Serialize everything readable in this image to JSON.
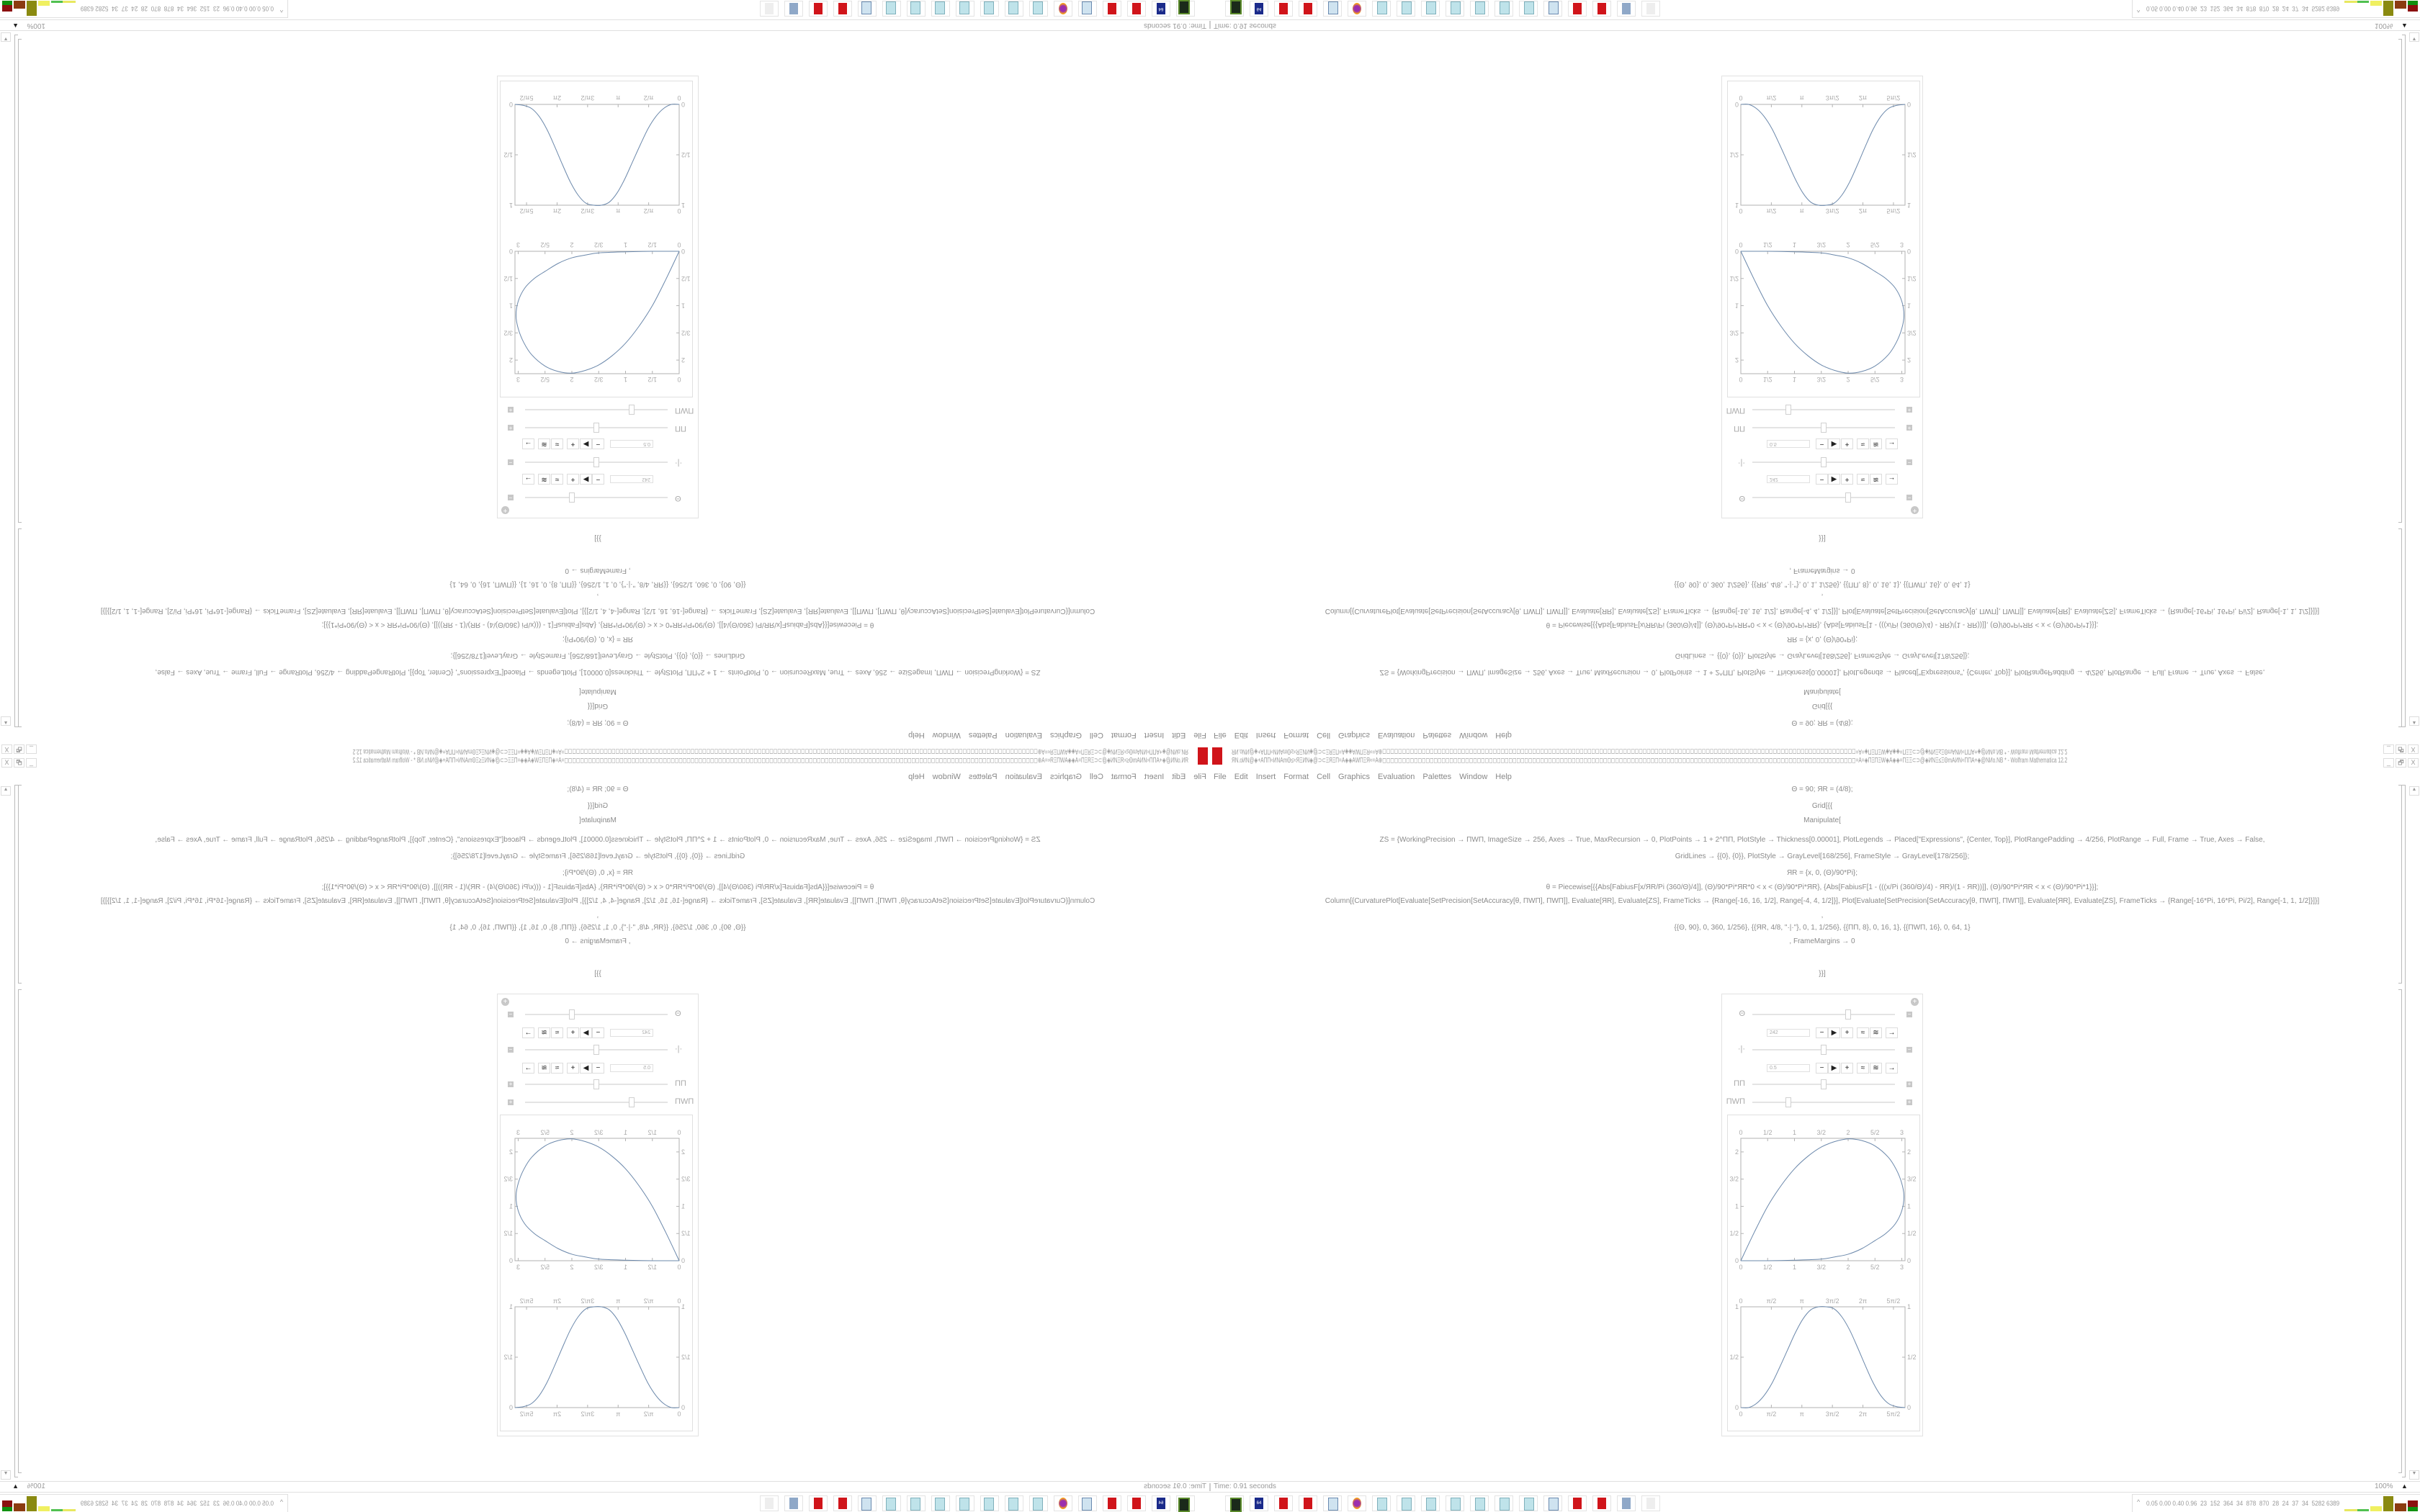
{
  "window": {
    "title": "ЯN.oИN@◈+ΑΠΠ≈ИNAmΘ≤≈ЯΞИN◈@⊃⊂ΞЯΞΠ=Α◈◈ΑWΠΞЯ≈=Α⊕◻◻◻◻◻◻◻◻◻◻◻◻◻◻◻◻◻◻◻◻◻◻◻◻◻◻◻◻◻◻◻◻◻◻◻◻◻◻◻◻◻◻◻◻◻◻◻◻◻◻◻◻◻◻◻◻◻◻◻◻◻◻◻◻◻◻◻◻◻◻◻◻◻◻◻◻◻◻◻◻◻◻◻◻◻◻◻◻◻◻◻◻◻◻◻◻◻◻◻◻◻◻◻◻◻◻◻◻◻◻◻◻◻◻◻◻◻◻◻◻=Α=◈ΠΞΠΞW◈Α◈◈=ΠΞΞ⊂⊃@◈ИNΞ≤ΞΘmΑИN≈ΠΠΑ+◈@NИo.NB * - Wolfram Mathematica 12.2",
    "buttons": {
      "minimize": "_",
      "restore": "🗗",
      "close": "X"
    }
  },
  "menu": [
    "File",
    "Edit",
    "Insert",
    "Format",
    "Cell",
    "Graphics",
    "Evaluation",
    "Palettes",
    "Window",
    "Help"
  ],
  "code": {
    "lines": [
      "Θ = 90; ЯR = (4/8);",
      "Grid[{{",
      "Manipulate[",
      "ZS = {WorkingPrecision → ΠWΠ, ImageSize → 256, Axes → True, MaxRecursion → 0, PlotPoints → 1 + 2^ΠΠ, PlotStyle → Thickness[0.00001], PlotLegends → Placed[\"Expressions\", {Center, Top}], PlotRangePadding → 4/256, PlotRange → Full, Frame → True, Axes → False,",
      "GridLines → {{0}, {0}}, PlotStyle → GrayLevel[168/256], FrameStyle → GrayLevel[178/256]};",
      "ЯR = {x, 0, (Θ)/90*Pi};",
      "θ = Piecewise[{{Abs[FabiusF[x/ЯR/Pi (360/Θ)/4]], (Θ)/90*Pi*ЯR*0 < x < (Θ)/90*Pi*ЯR}, {Abs[FabiusF[1 - (((x/Pi (360/Θ)/4) - ЯR)/(1 - ЯR))]], (Θ)/90*Pi*ЯR < x < (Θ)/90*Pi*1}}];",
      "Column[{CurvaturePlot[Evaluate[SetPrecision[SetAccuracy[θ, ΠWΠ], ΠWΠ]], Evaluate[ЯR], Evaluate[ZS], FrameTicks → {Range[-16, 16, 1/2], Range[-4, 4, 1/2]}], Plot[Evaluate[SetPrecision[SetAccuracy[θ, ΠWΠ], ΠWΠ]], Evaluate[ЯR], Evaluate[ZS], FrameTicks → {Range[-16*Pi, 16*Pi, Pi/2], Range[-1, 1, 1/2]}]}]",
      ",",
      "{{Θ, 90}, 0, 360, 1/256}, {{ЯR, 4/8, \"·|·\"}, 0, 1, 1/256}, {{ΠΠ, 8}, 0, 16, 1}, {{ΠWΠ, 16}, 0, 64, 1}",
      ", FrameMargins → 0",
      "}}]"
    ]
  },
  "manipulate": {
    "controls": [
      {
        "label": "Θ",
        "value": 242,
        "field": "242",
        "min": 0,
        "max": 360,
        "expanded": true
      },
      {
        "label": "·|·",
        "value": 0.5,
        "field": "0.5",
        "min": 0,
        "max": 1,
        "expanded": true
      },
      {
        "label": "ΠΠ",
        "value": 8,
        "min": 0,
        "max": 16,
        "expanded": false
      },
      {
        "label": "ΠWΠ",
        "value": 16,
        "min": 0,
        "max": 64,
        "expanded": false
      }
    ],
    "anim_buttons": [
      "−",
      "▶",
      "+",
      "≈",
      "≋",
      "→"
    ],
    "toggle_minus": "−",
    "toggle_plus": "+"
  },
  "chart_data": [
    {
      "type": "line",
      "title": "",
      "xlim": [
        0,
        3.06
      ],
      "ylim": [
        0,
        2.25
      ],
      "xticks": [
        0,
        0.5,
        1,
        1.5,
        2,
        2.5,
        3
      ],
      "xtick_labels": [
        "0",
        "1/2",
        "1",
        "3/2",
        "2",
        "5/2",
        "3"
      ],
      "yticks": [
        0,
        0.5,
        1,
        1.5,
        2
      ],
      "ytick_labels": [
        "0",
        "1/2",
        "1",
        "3/2",
        "2"
      ],
      "x": [
        0,
        0.25,
        0.5,
        0.75,
        1,
        1.25,
        1.5,
        1.75,
        2,
        2.25,
        2.5,
        2.75,
        2.9,
        3.0,
        3.04,
        3.0,
        2.88,
        2.7,
        2.5,
        2.25,
        2,
        1.75,
        1.5,
        1,
        0.5,
        0
      ],
      "y": [
        0,
        0.52,
        1.0,
        1.38,
        1.69,
        1.92,
        2.09,
        2.19,
        2.24,
        2.21,
        2.11,
        1.9,
        1.67,
        1.42,
        1.18,
        0.92,
        0.68,
        0.5,
        0.37,
        0.22,
        0.12,
        0.07,
        0.03,
        0.01,
        0,
        0
      ],
      "grid": false
    },
    {
      "type": "line",
      "title": "",
      "xlim": [
        0,
        8.45
      ],
      "ylim": [
        0,
        1
      ],
      "xticks": [
        0,
        1.5708,
        3.1416,
        4.7124,
        6.2832,
        7.854
      ],
      "xtick_labels": [
        "0",
        "π/2",
        "π",
        "3π/2",
        "2π",
        "5π/2"
      ],
      "yticks": [
        0,
        0.5,
        1
      ],
      "ytick_labels": [
        "0",
        "1/2",
        "1"
      ],
      "x": [
        0,
        0.4,
        0.8,
        1.2,
        1.6,
        2.0,
        2.4,
        2.8,
        3.2,
        3.6,
        4.0,
        4.4,
        4.8,
        5.2,
        5.6,
        6.0,
        6.4,
        6.8,
        7.2,
        7.6,
        8.0,
        8.45
      ],
      "y": [
        0,
        0,
        0.04,
        0.12,
        0.24,
        0.4,
        0.57,
        0.74,
        0.88,
        0.97,
        1,
        1,
        0.98,
        0.9,
        0.77,
        0.6,
        0.42,
        0.25,
        0.12,
        0.04,
        0.01,
        0
      ],
      "grid": false
    }
  ],
  "status": {
    "time": "Time: 0.91 seconds",
    "zoom": "100%"
  },
  "taskbar": {
    "icons": [
      "terminal-icon",
      "floppy-icon",
      "mathematica-icon",
      "mathematica-icon",
      "calculator-icon",
      "firefox-icon",
      "notepad-icon",
      "notepad-icon",
      "notepad-icon",
      "notepad-icon",
      "notepad-icon",
      "notepad-icon",
      "notepad-icon",
      "calculator-icon",
      "mathematica-icon",
      "mathematica-icon",
      "file-stack-icon",
      "flag-icon"
    ],
    "floppy_label": "64"
  },
  "tray": {
    "chevron": "^",
    "stats": "0.05 0.00 0.40 0.96  23  152  364  34  878  870  28  24  37  34  5282 6389"
  },
  "colors": {
    "curve": "#6b88ab",
    "frame": "#b2b2b2",
    "mathematica_red": "#d0141a",
    "text": "#888888"
  }
}
